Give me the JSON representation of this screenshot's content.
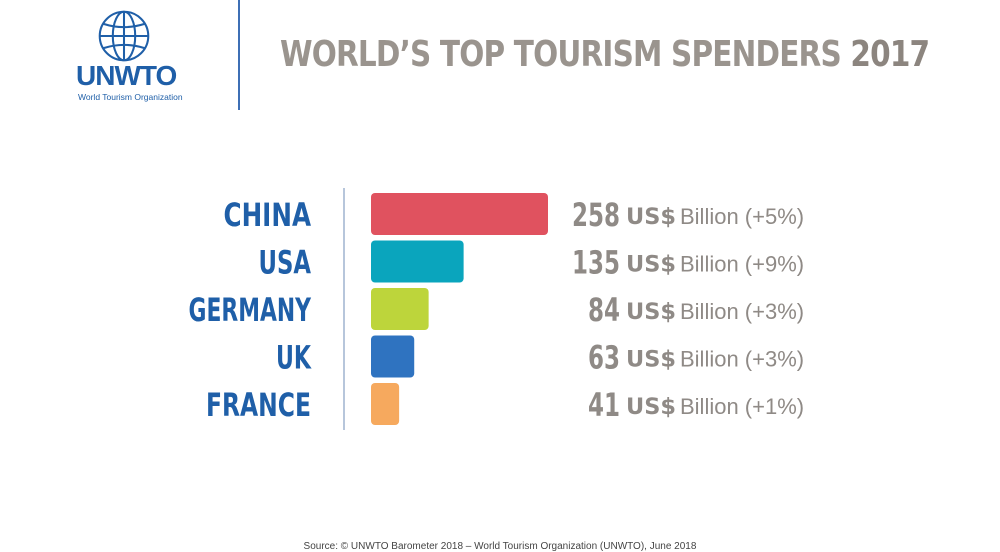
{
  "logo": {
    "name": "UNWTO",
    "subtitle": "World Tourism Organization"
  },
  "title": {
    "main": "WORLD’S TOP TOURISM SPENDERS",
    "year": "2017"
  },
  "chart_data": {
    "type": "bar",
    "orientation": "horizontal",
    "title": "WORLD’S TOP TOURISM SPENDERS 2017",
    "categories": [
      "CHINA",
      "USA",
      "GERMANY",
      "UK",
      "FRANCE"
    ],
    "values": [
      258,
      135,
      84,
      63,
      41
    ],
    "unit_label": "US$",
    "unit_suffix": "Billion",
    "changes": [
      "(+5%)",
      "(+9%)",
      "(+3%)",
      "(+3%)",
      "(+1%)"
    ],
    "colors": [
      "#e0525f",
      "#0aa5bd",
      "#bdd53b",
      "#2f73c0",
      "#f6a95e"
    ],
    "label_color": "#1f5fa8",
    "value_color": "#8f8a86",
    "xlim": [
      0,
      258
    ],
    "grid": false,
    "legend": "none"
  },
  "source": "Source: © UNWTO Barometer 2018 – World Tourism Organization (UNWTO), June 2018"
}
